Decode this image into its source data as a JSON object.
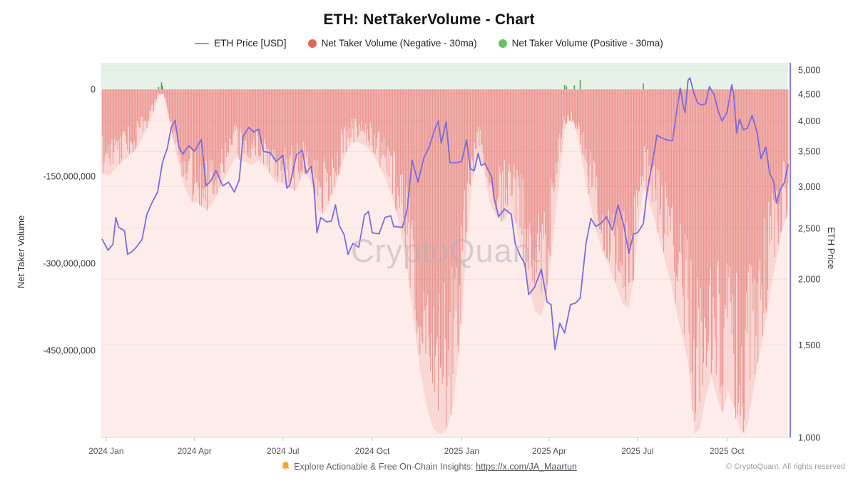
{
  "title": "ETH: NetTakerVolume - Chart",
  "watermark": "CryptoQuant",
  "legend": [
    {
      "label": "ETH Price [USD]",
      "marker": "line",
      "color": "#938ae6"
    },
    {
      "label": "Net Taker Volume (Negative - 30ma)",
      "marker": "circle",
      "color": "#e4635c"
    },
    {
      "label": "Net Taker Volume (Positive - 30ma)",
      "marker": "circle",
      "color": "#6abf69"
    }
  ],
  "footer": {
    "note": "Explore Actionable & Free On-Chain Insights:",
    "link": "https://x.com/JA_Maartun",
    "copyright": "© CryptoQuant. All rights reserved"
  },
  "left_axis": {
    "title": "Net Taker Volume",
    "ticks": [
      "0",
      "-150,000,000",
      "-300,000,000",
      "-450,000,000"
    ],
    "tick_values_musd": [
      0,
      -150,
      -300,
      -450
    ],
    "range_musd": [
      -600,
      45.7
    ]
  },
  "right_axis": {
    "title": "ETH Price",
    "scale": "log",
    "ticks": [
      "5,000",
      "4,500",
      "4,000",
      "3,500",
      "3,000",
      "2,500",
      "2,000",
      "1,500",
      "1,000"
    ],
    "tick_values": [
      5000,
      4500,
      4000,
      3500,
      3000,
      2500,
      2000,
      1500,
      1000
    ],
    "range": [
      1000,
      5160
    ]
  },
  "x_axis": {
    "start_date": "2023-12-27",
    "end_date": "2025-12-03",
    "total_days": 707,
    "ticks": [
      "2024 Jan",
      "2024 Apr",
      "2024 Jul",
      "2024 Oct",
      "2025 Jan",
      "2025 Apr",
      "2025 Jul",
      "2025 Oct"
    ],
    "tick_day_index": [
      5,
      96,
      187,
      279,
      371,
      461,
      552,
      644
    ]
  },
  "style": {
    "price_line": "#7a6be0",
    "right_axis_line": "#7a6be0",
    "neg_bar": "rgba(222,90,84,0.62)",
    "neg_area": "rgba(226,106,99,0.16)",
    "pos_bar": "#53a258",
    "zone_positive_bg": "#e6f2e7",
    "zone_negative_bg": "#fdecea",
    "gridline": "rgba(60,60,60,0.07)",
    "axis_text": "#3c3c3c",
    "x_text": "#555555",
    "axis_line": "#d9d9d9",
    "tick_mark": "#c0c0c0"
  },
  "chart_data": {
    "type": "mixed: bar + line",
    "x_unit": "days since 2023-12-27 (daily bars)",
    "series": [
      {
        "name": "ETH Price [USD]",
        "type": "line",
        "axis": "right (log USD)",
        "points": [
          [
            1,
            2380
          ],
          [
            7,
            2270
          ],
          [
            12,
            2330
          ],
          [
            15,
            2620
          ],
          [
            18,
            2510
          ],
          [
            24,
            2470
          ],
          [
            27,
            2230
          ],
          [
            32,
            2260
          ],
          [
            36,
            2300
          ],
          [
            42,
            2380
          ],
          [
            47,
            2660
          ],
          [
            52,
            2790
          ],
          [
            58,
            2930
          ],
          [
            63,
            3340
          ],
          [
            68,
            3550
          ],
          [
            72,
            3890
          ],
          [
            76,
            4010
          ],
          [
            80,
            3560
          ],
          [
            84,
            3460
          ],
          [
            90,
            3590
          ],
          [
            96,
            3500
          ],
          [
            103,
            3690
          ],
          [
            108,
            3010
          ],
          [
            113,
            3080
          ],
          [
            118,
            3220
          ],
          [
            125,
            3010
          ],
          [
            131,
            3060
          ],
          [
            137,
            2930
          ],
          [
            142,
            3090
          ],
          [
            146,
            3740
          ],
          [
            152,
            3890
          ],
          [
            157,
            3810
          ],
          [
            162,
            3860
          ],
          [
            167,
            3500
          ],
          [
            174,
            3480
          ],
          [
            180,
            3350
          ],
          [
            187,
            3440
          ],
          [
            191,
            2980
          ],
          [
            194,
            3020
          ],
          [
            201,
            3450
          ],
          [
            207,
            3520
          ],
          [
            211,
            3180
          ],
          [
            216,
            3280
          ],
          [
            219,
            2990
          ],
          [
            222,
            2450
          ],
          [
            226,
            2620
          ],
          [
            232,
            2570
          ],
          [
            237,
            2580
          ],
          [
            241,
            2770
          ],
          [
            245,
            2530
          ],
          [
            250,
            2430
          ],
          [
            254,
            2230
          ],
          [
            259,
            2340
          ],
          [
            265,
            2300
          ],
          [
            271,
            2650
          ],
          [
            275,
            2690
          ],
          [
            279,
            2450
          ],
          [
            286,
            2440
          ],
          [
            292,
            2620
          ],
          [
            298,
            2640
          ],
          [
            301,
            2520
          ],
          [
            310,
            2510
          ],
          [
            315,
            2720
          ],
          [
            320,
            3370
          ],
          [
            326,
            3060
          ],
          [
            332,
            3400
          ],
          [
            338,
            3590
          ],
          [
            343,
            3840
          ],
          [
            347,
            4000
          ],
          [
            350,
            3630
          ],
          [
            355,
            3980
          ],
          [
            359,
            3330
          ],
          [
            365,
            3330
          ],
          [
            371,
            3350
          ],
          [
            376,
            3680
          ],
          [
            380,
            3240
          ],
          [
            384,
            3220
          ],
          [
            388,
            3470
          ],
          [
            391,
            3290
          ],
          [
            395,
            3320
          ],
          [
            402,
            3120
          ],
          [
            404,
            2870
          ],
          [
            409,
            2630
          ],
          [
            415,
            2720
          ],
          [
            422,
            2660
          ],
          [
            426,
            2340
          ],
          [
            431,
            2220
          ],
          [
            436,
            2140
          ],
          [
            440,
            1870
          ],
          [
            446,
            1930
          ],
          [
            453,
            2090
          ],
          [
            459,
            1810
          ],
          [
            463,
            1790
          ],
          [
            467,
            1470
          ],
          [
            472,
            1650
          ],
          [
            477,
            1580
          ],
          [
            483,
            1790
          ],
          [
            488,
            1800
          ],
          [
            493,
            1840
          ],
          [
            499,
            2340
          ],
          [
            504,
            2610
          ],
          [
            509,
            2520
          ],
          [
            515,
            2560
          ],
          [
            520,
            2630
          ],
          [
            526,
            2480
          ],
          [
            532,
            2770
          ],
          [
            538,
            2530
          ],
          [
            543,
            2240
          ],
          [
            548,
            2440
          ],
          [
            552,
            2450
          ],
          [
            558,
            2550
          ],
          [
            562,
            2950
          ],
          [
            568,
            3390
          ],
          [
            572,
            3760
          ],
          [
            576,
            3720
          ],
          [
            582,
            3680
          ],
          [
            588,
            3670
          ],
          [
            593,
            4250
          ],
          [
            596,
            4620
          ],
          [
            599,
            4280
          ],
          [
            601,
            4150
          ],
          [
            604,
            4780
          ],
          [
            606,
            4830
          ],
          [
            610,
            4520
          ],
          [
            614,
            4320
          ],
          [
            618,
            4290
          ],
          [
            622,
            4310
          ],
          [
            626,
            4650
          ],
          [
            631,
            4480
          ],
          [
            635,
            4180
          ],
          [
            639,
            4000
          ],
          [
            644,
            4150
          ],
          [
            649,
            4690
          ],
          [
            651,
            4480
          ],
          [
            654,
            3790
          ],
          [
            657,
            4030
          ],
          [
            661,
            3850
          ],
          [
            665,
            3870
          ],
          [
            670,
            4100
          ],
          [
            675,
            3810
          ],
          [
            679,
            3390
          ],
          [
            684,
            3570
          ],
          [
            688,
            3180
          ],
          [
            692,
            3070
          ],
          [
            695,
            2790
          ],
          [
            699,
            2960
          ],
          [
            703,
            3050
          ],
          [
            707,
            3300
          ]
        ]
      },
      {
        "name": "Net Taker Volume (Negative - 30ma)",
        "type": "bar",
        "axis": "left (million USD)",
        "envelope_points_musd": [
          [
            0,
            -110
          ],
          [
            8,
            -115
          ],
          [
            18,
            -100
          ],
          [
            27,
            -90
          ],
          [
            36,
            -80
          ],
          [
            46,
            -55
          ],
          [
            54,
            -30
          ],
          [
            59,
            -8
          ],
          [
            64,
            -6
          ],
          [
            70,
            -40
          ],
          [
            78,
            -90
          ],
          [
            86,
            -130
          ],
          [
            93,
            -150
          ],
          [
            100,
            -150
          ],
          [
            108,
            -160
          ],
          [
            115,
            -150
          ],
          [
            122,
            -130
          ],
          [
            130,
            -110
          ],
          [
            138,
            -90
          ],
          [
            146,
            -95
          ],
          [
            154,
            -100
          ],
          [
            162,
            -95
          ],
          [
            170,
            -105
          ],
          [
            178,
            -120
          ],
          [
            186,
            -125
          ],
          [
            194,
            -130
          ],
          [
            200,
            -135
          ],
          [
            208,
            -110
          ],
          [
            215,
            -120
          ],
          [
            222,
            -160
          ],
          [
            228,
            -165
          ],
          [
            235,
            -150
          ],
          [
            242,
            -125
          ],
          [
            250,
            -90
          ],
          [
            258,
            -70
          ],
          [
            265,
            -70
          ],
          [
            272,
            -75
          ],
          [
            279,
            -85
          ],
          [
            286,
            -100
          ],
          [
            293,
            -120
          ],
          [
            300,
            -145
          ],
          [
            307,
            -180
          ],
          [
            314,
            -230
          ],
          [
            321,
            -300
          ],
          [
            328,
            -370
          ],
          [
            335,
            -420
          ],
          [
            342,
            -450
          ],
          [
            349,
            -465
          ],
          [
            356,
            -450
          ],
          [
            362,
            -420
          ],
          [
            367,
            -360
          ],
          [
            371,
            -300
          ],
          [
            376,
            -210
          ],
          [
            382,
            -120
          ],
          [
            387,
            -85
          ],
          [
            393,
            -100
          ],
          [
            400,
            -150
          ],
          [
            407,
            -170
          ],
          [
            414,
            -175
          ],
          [
            421,
            -160
          ],
          [
            427,
            -180
          ],
          [
            433,
            -220
          ],
          [
            440,
            -265
          ],
          [
            447,
            -295
          ],
          [
            453,
            -300
          ],
          [
            459,
            -270
          ],
          [
            464,
            -210
          ],
          [
            469,
            -150
          ],
          [
            473,
            -100
          ],
          [
            477,
            -55
          ],
          [
            481,
            -40
          ],
          [
            486,
            -45
          ],
          [
            491,
            -65
          ],
          [
            497,
            -110
          ],
          [
            503,
            -150
          ],
          [
            509,
            -185
          ],
          [
            516,
            -215
          ],
          [
            523,
            -235
          ],
          [
            530,
            -260
          ],
          [
            537,
            -285
          ],
          [
            543,
            -290
          ],
          [
            548,
            -250
          ],
          [
            553,
            -180
          ],
          [
            558,
            -130
          ],
          [
            563,
            -145
          ],
          [
            569,
            -170
          ],
          [
            575,
            -200
          ],
          [
            581,
            -230
          ],
          [
            587,
            -260
          ],
          [
            593,
            -300
          ],
          [
            599,
            -330
          ],
          [
            605,
            -370
          ],
          [
            611,
            -460
          ],
          [
            616,
            -450
          ],
          [
            622,
            -410
          ],
          [
            628,
            -380
          ],
          [
            634,
            -410
          ],
          [
            640,
            -430
          ],
          [
            645,
            -400
          ],
          [
            651,
            -420
          ],
          [
            657,
            -450
          ],
          [
            662,
            -470
          ],
          [
            666,
            -440
          ],
          [
            671,
            -400
          ],
          [
            676,
            -360
          ],
          [
            681,
            -330
          ],
          [
            686,
            -290
          ],
          [
            691,
            -250
          ],
          [
            696,
            -220
          ],
          [
            701,
            -185
          ],
          [
            707,
            -165
          ]
        ],
        "bar_jitter": 0.32,
        "max_depth_musd": -594
      },
      {
        "name": "Net Taker Volume (Positive - 30ma)",
        "type": "bar",
        "axis": "left (million USD)",
        "points_musd": [
          [
            59,
            4
          ],
          [
            62,
            12
          ],
          [
            63,
            6
          ],
          [
            477,
            8
          ],
          [
            479,
            5
          ],
          [
            487,
            7
          ],
          [
            493,
            16
          ],
          [
            558,
            10
          ]
        ]
      }
    ]
  }
}
